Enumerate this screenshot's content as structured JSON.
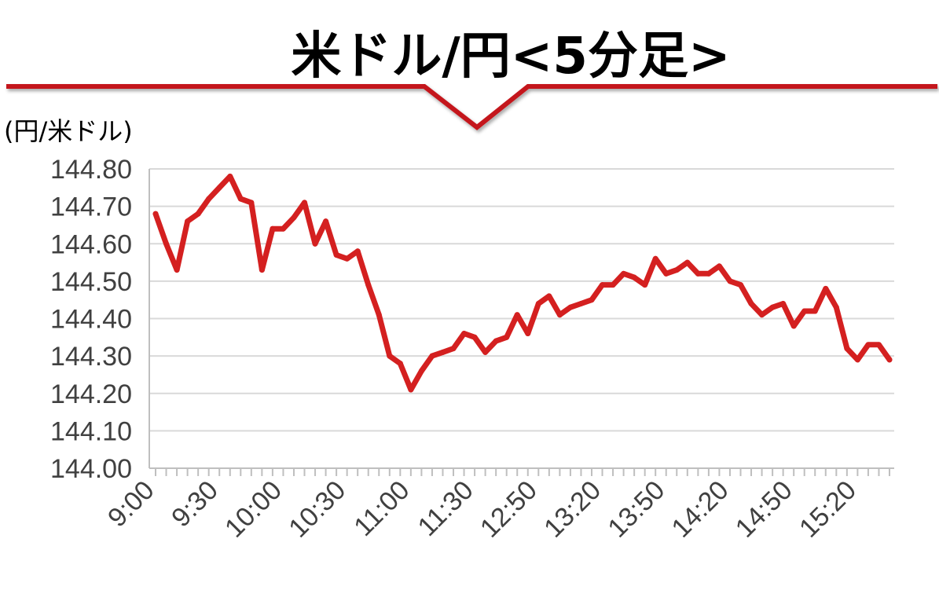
{
  "chart_data": {
    "type": "line",
    "title": "米ドル/円<5分足>",
    "ylabel": "(円/米ドル)",
    "ylim": [
      144.0,
      144.8
    ],
    "yticks": [
      "144.80",
      "144.70",
      "144.60",
      "144.50",
      "144.40",
      "144.30",
      "144.20",
      "144.10",
      "144.00"
    ],
    "grid": true,
    "x_tick_labels": [
      "9:00",
      "9:30",
      "10:00",
      "10:30",
      "11:00",
      "11:30",
      "12:50",
      "13:20",
      "13:50",
      "14:20",
      "14:50",
      "15:20"
    ],
    "x_tick_index": [
      0,
      6,
      12,
      18,
      24,
      30,
      36,
      42,
      48,
      54,
      60,
      66
    ],
    "series": [
      {
        "name": "",
        "color": "#d42020",
        "values": [
          144.68,
          144.6,
          144.53,
          144.66,
          144.68,
          144.72,
          144.75,
          144.78,
          144.72,
          144.71,
          144.53,
          144.64,
          144.64,
          144.67,
          144.71,
          144.6,
          144.66,
          144.57,
          144.56,
          144.58,
          144.49,
          144.41,
          144.3,
          144.28,
          144.21,
          144.26,
          144.3,
          144.31,
          144.32,
          144.36,
          144.35,
          144.31,
          144.34,
          144.35,
          144.41,
          144.36,
          144.44,
          144.46,
          144.41,
          144.43,
          144.44,
          144.45,
          144.49,
          144.49,
          144.52,
          144.51,
          144.49,
          144.56,
          144.52,
          144.53,
          144.55,
          144.52,
          144.52,
          144.54,
          144.5,
          144.49,
          144.44,
          144.41,
          144.43,
          144.44,
          144.38,
          144.42,
          144.42,
          144.48,
          144.43,
          144.32,
          144.29,
          144.33,
          144.33,
          144.29
        ]
      }
    ]
  },
  "colors": {
    "accent": "#c4161c",
    "line": "#d42020",
    "grid": "#d9d9d9",
    "axis": "#bfbfbf",
    "text": "#404040"
  }
}
